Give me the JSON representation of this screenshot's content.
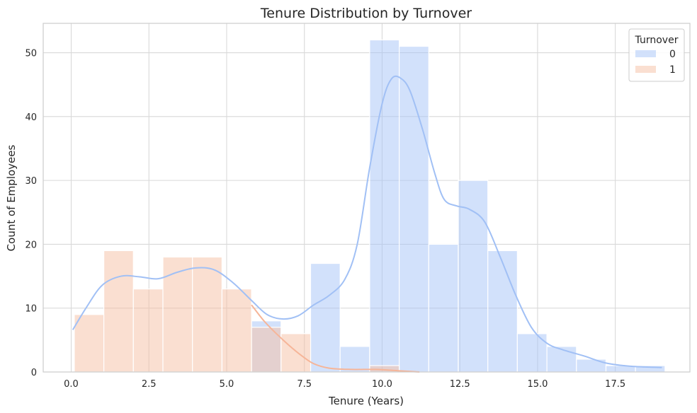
{
  "chart_data": {
    "type": "bar",
    "subtype": "histogram-with-kde",
    "title": "Tenure Distribution by Turnover",
    "xlabel": "Tenure (Years)",
    "ylabel": "Count of Employees",
    "xlim": [
      -0.9,
      19.9
    ],
    "ylim": [
      0,
      54.6
    ],
    "x_ticks": [
      "0.0",
      "2.5",
      "5.0",
      "7.5",
      "10.0",
      "12.5",
      "15.0",
      "17.5"
    ],
    "x_tick_values": [
      0,
      2.5,
      5,
      7.5,
      10,
      12.5,
      15,
      17.5
    ],
    "y_ticks": [
      "0",
      "10",
      "20",
      "30",
      "40",
      "50"
    ],
    "y_tick_values": [
      0,
      10,
      20,
      30,
      40,
      50
    ],
    "grid": true,
    "bin_edges": [
      0.1,
      1.05,
      2.0,
      2.95,
      3.9,
      4.85,
      5.8,
      6.75,
      7.7,
      8.65,
      9.6,
      10.55,
      11.5,
      12.45,
      13.4,
      14.35,
      15.3,
      16.25,
      17.2,
      18.15,
      19.1
    ],
    "series": [
      {
        "name": "0",
        "color": "#a6c4f7",
        "counts": [
          0,
          0,
          0,
          0,
          0,
          0,
          8,
          0,
          17,
          4,
          52,
          51,
          20,
          30,
          19,
          6,
          4,
          2,
          1,
          1
        ],
        "kde": [
          [
            0.05,
            6.6
          ],
          [
            0.5,
            10.2
          ],
          [
            1.0,
            13.6
          ],
          [
            1.6,
            15.0
          ],
          [
            2.2,
            14.9
          ],
          [
            2.8,
            14.6
          ],
          [
            3.4,
            15.6
          ],
          [
            4.0,
            16.3
          ],
          [
            4.6,
            16.0
          ],
          [
            5.2,
            14.0
          ],
          [
            5.8,
            11.2
          ],
          [
            6.3,
            9.0
          ],
          [
            6.8,
            8.3
          ],
          [
            7.3,
            8.8
          ],
          [
            7.8,
            10.5
          ],
          [
            8.3,
            12.0
          ],
          [
            8.8,
            14.5
          ],
          [
            9.2,
            20.0
          ],
          [
            9.6,
            32.0
          ],
          [
            10.0,
            42.0
          ],
          [
            10.3,
            45.9
          ],
          [
            10.6,
            46.0
          ],
          [
            10.9,
            44.0
          ],
          [
            11.3,
            38.0
          ],
          [
            11.7,
            31.0
          ],
          [
            12.0,
            27.0
          ],
          [
            12.4,
            26.0
          ],
          [
            12.8,
            25.5
          ],
          [
            13.3,
            23.5
          ],
          [
            13.8,
            18.0
          ],
          [
            14.3,
            12.0
          ],
          [
            14.8,
            7.0
          ],
          [
            15.3,
            4.5
          ],
          [
            15.8,
            3.5
          ],
          [
            16.5,
            2.5
          ],
          [
            17.2,
            1.4
          ],
          [
            18.0,
            0.9
          ],
          [
            19.0,
            0.7
          ]
        ]
      },
      {
        "name": "1",
        "color": "#f6bfa4",
        "counts": [
          9,
          19,
          13,
          18,
          18,
          13,
          7,
          6,
          0,
          0,
          1,
          0,
          0,
          0,
          0,
          0,
          0,
          0,
          0,
          0
        ],
        "kde": [
          [
            5.8,
            10.5
          ],
          [
            6.2,
            8.0
          ],
          [
            6.6,
            6.0
          ],
          [
            7.0,
            4.2
          ],
          [
            7.4,
            2.6
          ],
          [
            7.8,
            1.3
          ],
          [
            8.3,
            0.6
          ],
          [
            9.0,
            0.4
          ],
          [
            9.8,
            0.4
          ],
          [
            10.5,
            0.2
          ],
          [
            11.2,
            0.0
          ]
        ]
      }
    ],
    "legend": {
      "title": "Turnover",
      "placement": "top-right",
      "entries": [
        "0",
        "1"
      ]
    }
  }
}
